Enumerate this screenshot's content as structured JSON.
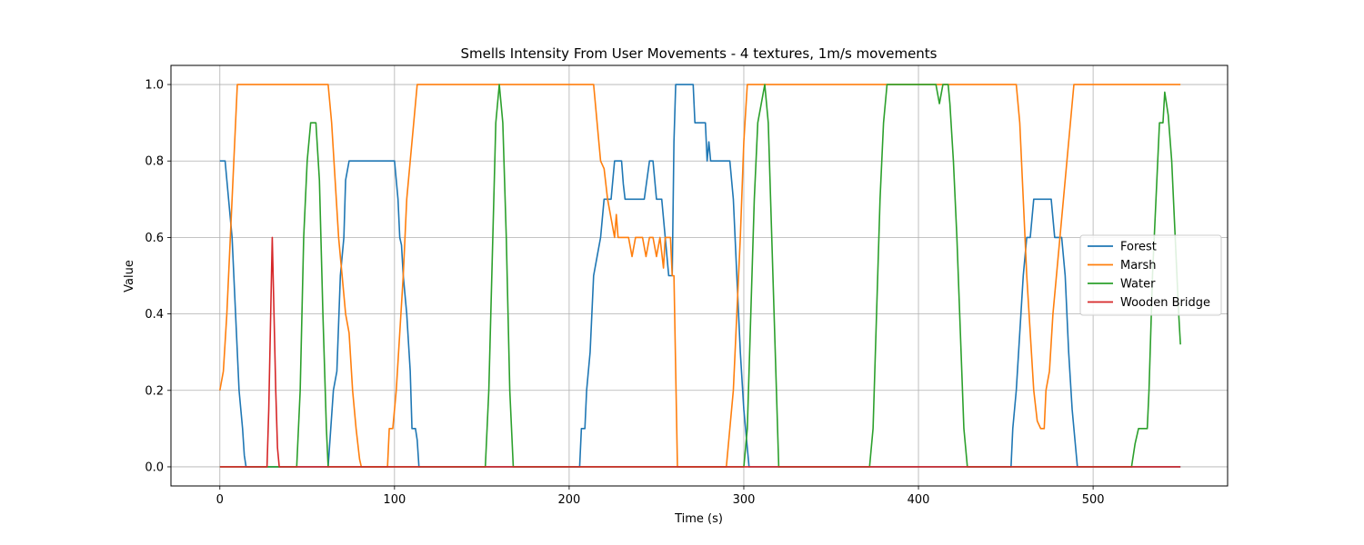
{
  "chart_data": {
    "type": "line",
    "title": "Smells Intensity From User Movements - 4 textures, 1m/s movements",
    "xlabel": "Time (s)",
    "ylabel": "Value",
    "xlim": [
      -28,
      577
    ],
    "ylim": [
      -0.05,
      1.05
    ],
    "xticks": [
      0,
      100,
      200,
      300,
      400,
      500
    ],
    "yticks": [
      0.0,
      0.2,
      0.4,
      0.6,
      0.8,
      1.0
    ],
    "xtick_labels": [
      "0",
      "100",
      "200",
      "300",
      "400",
      "500"
    ],
    "ytick_labels": [
      "0.0",
      "0.2",
      "0.4",
      "0.6",
      "0.8",
      "1.0"
    ],
    "grid": true,
    "legend_position": "center-right",
    "series": [
      {
        "name": "Forest",
        "color": "#1f77b4",
        "points": [
          [
            0,
            0.8
          ],
          [
            3,
            0.8
          ],
          [
            5,
            0.7
          ],
          [
            7,
            0.6
          ],
          [
            9,
            0.4
          ],
          [
            11,
            0.2
          ],
          [
            13,
            0.1
          ],
          [
            14,
            0.03
          ],
          [
            15,
            0
          ],
          [
            62,
            0
          ],
          [
            65,
            0.2
          ],
          [
            67,
            0.25
          ],
          [
            69,
            0.5
          ],
          [
            71,
            0.6
          ],
          [
            72,
            0.75
          ],
          [
            74,
            0.8
          ],
          [
            100,
            0.8
          ],
          [
            102,
            0.7
          ],
          [
            103,
            0.6
          ],
          [
            104,
            0.58
          ],
          [
            105,
            0.5
          ],
          [
            107,
            0.4
          ],
          [
            109,
            0.25
          ],
          [
            110,
            0.1
          ],
          [
            112,
            0.1
          ],
          [
            113,
            0.07
          ],
          [
            114,
            0
          ],
          [
            206,
            0
          ],
          [
            207,
            0.1
          ],
          [
            209,
            0.1
          ],
          [
            210,
            0.2
          ],
          [
            212,
            0.3
          ],
          [
            214,
            0.5
          ],
          [
            216,
            0.55
          ],
          [
            218,
            0.6
          ],
          [
            219,
            0.65
          ],
          [
            220,
            0.7
          ],
          [
            224,
            0.7
          ],
          [
            226,
            0.8
          ],
          [
            230,
            0.8
          ],
          [
            231,
            0.74
          ],
          [
            232,
            0.7
          ],
          [
            243,
            0.7
          ],
          [
            246,
            0.8
          ],
          [
            248,
            0.8
          ],
          [
            250,
            0.7
          ],
          [
            253,
            0.7
          ],
          [
            255,
            0.6
          ],
          [
            257,
            0.5
          ],
          [
            259,
            0.5
          ],
          [
            260,
            0.85
          ],
          [
            261,
            1.0
          ],
          [
            271,
            1.0
          ],
          [
            272,
            0.9
          ],
          [
            278,
            0.9
          ],
          [
            279,
            0.8
          ],
          [
            280,
            0.85
          ],
          [
            281,
            0.8
          ],
          [
            292,
            0.8
          ],
          [
            294,
            0.7
          ],
          [
            296,
            0.5
          ],
          [
            298,
            0.3
          ],
          [
            300,
            0.15
          ],
          [
            302,
            0.05
          ],
          [
            303,
            0
          ],
          [
            453,
            0
          ],
          [
            454,
            0.1
          ],
          [
            456,
            0.2
          ],
          [
            458,
            0.35
          ],
          [
            460,
            0.5
          ],
          [
            462,
            0.6
          ],
          [
            464,
            0.6
          ],
          [
            466,
            0.7
          ],
          [
            476,
            0.7
          ],
          [
            478,
            0.6
          ],
          [
            482,
            0.6
          ],
          [
            484,
            0.5
          ],
          [
            486,
            0.3
          ],
          [
            488,
            0.15
          ],
          [
            490,
            0.05
          ],
          [
            491,
            0
          ],
          [
            550,
            0
          ]
        ]
      },
      {
        "name": "Marsh",
        "color": "#ff7f0e",
        "points": [
          [
            0,
            0.2
          ],
          [
            2,
            0.25
          ],
          [
            4,
            0.4
          ],
          [
            6,
            0.6
          ],
          [
            8,
            0.8
          ],
          [
            10,
            1.0
          ],
          [
            62,
            1.0
          ],
          [
            64,
            0.9
          ],
          [
            66,
            0.75
          ],
          [
            68,
            0.6
          ],
          [
            70,
            0.5
          ],
          [
            72,
            0.4
          ],
          [
            74,
            0.35
          ],
          [
            76,
            0.2
          ],
          [
            78,
            0.1
          ],
          [
            80,
            0.02
          ],
          [
            81,
            0
          ],
          [
            96,
            0
          ],
          [
            97,
            0.1
          ],
          [
            99,
            0.1
          ],
          [
            101,
            0.2
          ],
          [
            103,
            0.35
          ],
          [
            105,
            0.5
          ],
          [
            107,
            0.7
          ],
          [
            109,
            0.8
          ],
          [
            111,
            0.9
          ],
          [
            113,
            1.0
          ],
          [
            214,
            1.0
          ],
          [
            216,
            0.9
          ],
          [
            218,
            0.8
          ],
          [
            220,
            0.78
          ],
          [
            222,
            0.7
          ],
          [
            224,
            0.65
          ],
          [
            226,
            0.6
          ],
          [
            227,
            0.66
          ],
          [
            228,
            0.6
          ],
          [
            234,
            0.6
          ],
          [
            236,
            0.55
          ],
          [
            238,
            0.6
          ],
          [
            242,
            0.6
          ],
          [
            244,
            0.55
          ],
          [
            246,
            0.6
          ],
          [
            248,
            0.6
          ],
          [
            250,
            0.55
          ],
          [
            252,
            0.6
          ],
          [
            254,
            0.52
          ],
          [
            255,
            0.6
          ],
          [
            258,
            0.6
          ],
          [
            259,
            0.5
          ],
          [
            260,
            0.5
          ],
          [
            262,
            0
          ],
          [
            290,
            0
          ],
          [
            292,
            0.1
          ],
          [
            294,
            0.2
          ],
          [
            296,
            0.4
          ],
          [
            298,
            0.6
          ],
          [
            300,
            0.85
          ],
          [
            302,
            1.0
          ],
          [
            456,
            1.0
          ],
          [
            458,
            0.9
          ],
          [
            460,
            0.7
          ],
          [
            462,
            0.5
          ],
          [
            464,
            0.35
          ],
          [
            466,
            0.2
          ],
          [
            468,
            0.12
          ],
          [
            470,
            0.1
          ],
          [
            472,
            0.1
          ],
          [
            473,
            0.2
          ],
          [
            475,
            0.25
          ],
          [
            477,
            0.4
          ],
          [
            479,
            0.5
          ],
          [
            481,
            0.6
          ],
          [
            483,
            0.7
          ],
          [
            485,
            0.8
          ],
          [
            487,
            0.9
          ],
          [
            489,
            1.0
          ],
          [
            550,
            1.0
          ]
        ]
      },
      {
        "name": "Water",
        "color": "#2ca02c",
        "points": [
          [
            0,
            0
          ],
          [
            44,
            0
          ],
          [
            46,
            0.2
          ],
          [
            48,
            0.6
          ],
          [
            50,
            0.8
          ],
          [
            52,
            0.9
          ],
          [
            55,
            0.9
          ],
          [
            57,
            0.75
          ],
          [
            59,
            0.4
          ],
          [
            61,
            0.1
          ],
          [
            62,
            0
          ],
          [
            152,
            0
          ],
          [
            154,
            0.2
          ],
          [
            156,
            0.55
          ],
          [
            158,
            0.9
          ],
          [
            160,
            1.0
          ],
          [
            162,
            0.9
          ],
          [
            164,
            0.6
          ],
          [
            166,
            0.2
          ],
          [
            168,
            0
          ],
          [
            300,
            0
          ],
          [
            302,
            0.1
          ],
          [
            304,
            0.4
          ],
          [
            306,
            0.7
          ],
          [
            308,
            0.9
          ],
          [
            310,
            0.95
          ],
          [
            312,
            1.0
          ],
          [
            314,
            0.9
          ],
          [
            316,
            0.6
          ],
          [
            318,
            0.3
          ],
          [
            320,
            0
          ],
          [
            372,
            0
          ],
          [
            374,
            0.1
          ],
          [
            376,
            0.4
          ],
          [
            378,
            0.7
          ],
          [
            380,
            0.9
          ],
          [
            382,
            1.0
          ],
          [
            410,
            1.0
          ],
          [
            412,
            0.95
          ],
          [
            414,
            1.0
          ],
          [
            417,
            1.0
          ],
          [
            418,
            0.95
          ],
          [
            420,
            0.8
          ],
          [
            422,
            0.6
          ],
          [
            424,
            0.35
          ],
          [
            426,
            0.1
          ],
          [
            428,
            0
          ],
          [
            522,
            0
          ],
          [
            524,
            0.06
          ],
          [
            526,
            0.1
          ],
          [
            531,
            0.1
          ],
          [
            532,
            0.2
          ],
          [
            534,
            0.5
          ],
          [
            536,
            0.7
          ],
          [
            538,
            0.9
          ],
          [
            540,
            0.9
          ],
          [
            541,
            0.98
          ],
          [
            543,
            0.92
          ],
          [
            545,
            0.8
          ],
          [
            547,
            0.6
          ],
          [
            549,
            0.4
          ],
          [
            550,
            0.32
          ]
        ]
      },
      {
        "name": "Wooden Bridge",
        "color": "#d62728",
        "points": [
          [
            0,
            0
          ],
          [
            27,
            0
          ],
          [
            28,
            0.15
          ],
          [
            30,
            0.6
          ],
          [
            32,
            0.2
          ],
          [
            33,
            0.05
          ],
          [
            34,
            0
          ],
          [
            550,
            0
          ]
        ]
      }
    ]
  }
}
